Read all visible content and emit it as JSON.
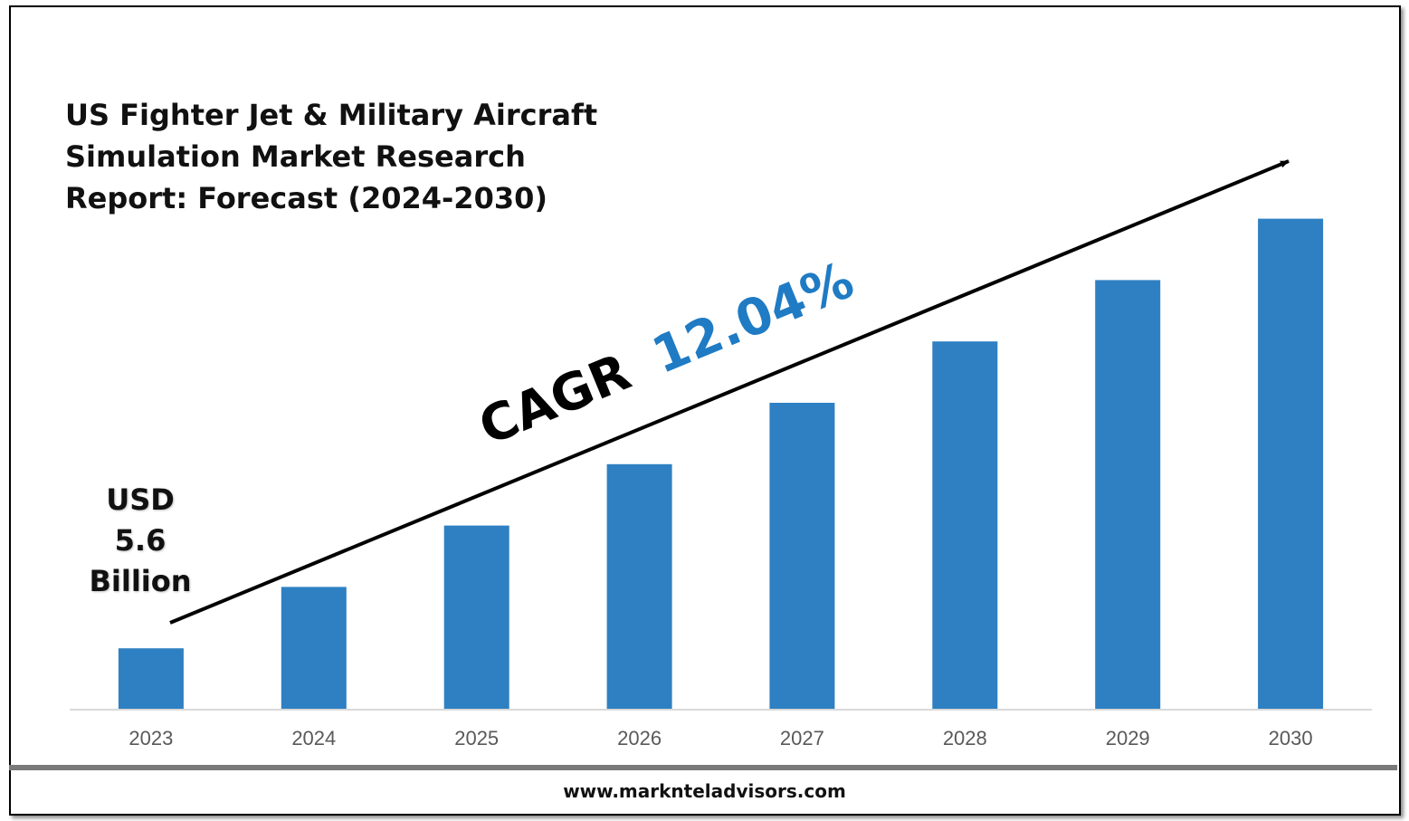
{
  "chart_data": {
    "type": "bar",
    "title_lines": [
      "US Fighter Jet & Military Aircraft",
      "Simulation Market Research",
      "Report: Forecast (2024-2030)"
    ],
    "categories": [
      "2023",
      "2024",
      "2025",
      "2026",
      "2027",
      "2028",
      "2029",
      "2030"
    ],
    "values": [
      1,
      2,
      3,
      4,
      5,
      6,
      7,
      8
    ],
    "value_note": "relative bar heights; only the 2023 value is printed",
    "ylim": [
      0,
      8.5
    ],
    "grid": false,
    "legend": "none",
    "bar_color": "#2e80c2",
    "annotations": {
      "base_value_lines": [
        "USD",
        "5.6",
        "Billion"
      ],
      "cagr_label": "CAGR",
      "cagr_value": "12.04%",
      "cagr_value_color": "#1f7bc4"
    }
  },
  "footer": {
    "url": "www.marknteladvisors.com"
  }
}
